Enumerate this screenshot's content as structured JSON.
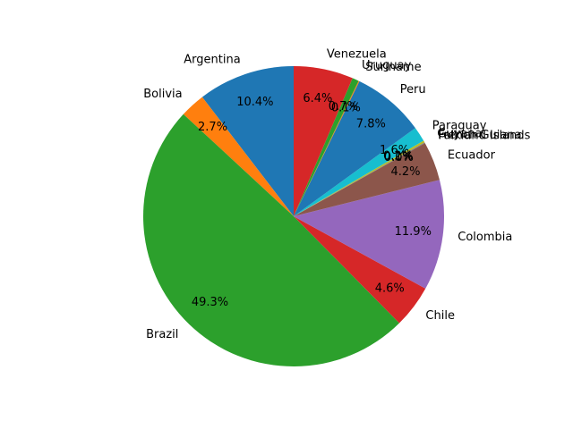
{
  "chart_data": {
    "type": "pie",
    "start_angle_deg": 90,
    "direction": "counterclockwise",
    "slices": [
      {
        "label": "Argentina",
        "pct_text": "10.4%",
        "value": 10.4,
        "color": "#1f77b4"
      },
      {
        "label": "Bolivia",
        "pct_text": "2.7%",
        "value": 2.7,
        "color": "#ff7f0e"
      },
      {
        "label": "Brazil",
        "pct_text": "49.3%",
        "value": 49.3,
        "color": "#2ca02c"
      },
      {
        "label": "Chile",
        "pct_text": "4.6%",
        "value": 4.6,
        "color": "#d62728"
      },
      {
        "label": "Colombia",
        "pct_text": "11.9%",
        "value": 11.9,
        "color": "#9467bd"
      },
      {
        "label": "Ecuador",
        "pct_text": "4.2%",
        "value": 4.2,
        "color": "#8c564b"
      },
      {
        "label": "Falkland Islands",
        "pct_text": "0.0%",
        "value": 0.0,
        "color": "#e377c2"
      },
      {
        "label": "French Guiana",
        "pct_text": "0.1%",
        "value": 0.1,
        "color": "#7f7f7f"
      },
      {
        "label": "Guyana",
        "pct_text": "0.2%",
        "value": 0.2,
        "color": "#bcbd22"
      },
      {
        "label": "Paraguay",
        "pct_text": "1.6%",
        "value": 1.6,
        "color": "#17becf"
      },
      {
        "label": "Peru",
        "pct_text": "7.8%",
        "value": 7.8,
        "color": "#1f77b4"
      },
      {
        "label": "Suriname",
        "pct_text": "0.1%",
        "value": 0.1,
        "color": "#ff7f0e"
      },
      {
        "label": "Uruguay",
        "pct_text": "0.7%",
        "value": 0.7,
        "color": "#2ca02c"
      },
      {
        "label": "Venezuela",
        "pct_text": "6.4%",
        "value": 6.4,
        "color": "#d62728"
      }
    ]
  }
}
